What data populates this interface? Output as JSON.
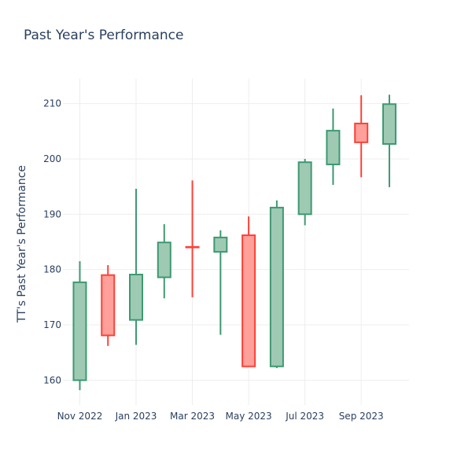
{
  "chart_data": {
    "type": "candlestick",
    "title": "Past Year's Performance",
    "ylabel": "TT's Past Year's Performance",
    "xlabel": "",
    "ylim": [
      155.5,
      214.5
    ],
    "xlim_months": [
      -0.6,
      11.7
    ],
    "yticks": [
      160,
      170,
      180,
      190,
      200,
      210
    ],
    "xticks": [
      {
        "m": 0,
        "label": "Nov 2022"
      },
      {
        "m": 2,
        "label": "Jan 2023"
      },
      {
        "m": 4,
        "label": "Mar 2023"
      },
      {
        "m": 6,
        "label": "May 2023"
      },
      {
        "m": 8,
        "label": "Jul 2023"
      },
      {
        "m": 10,
        "label": "Sep 2023"
      }
    ],
    "colors": {
      "increasing_line": "#3d9970",
      "increasing_fill": "#9ecab4",
      "decreasing_line": "#ff4136",
      "decreasing_fill": "#ffa09a"
    },
    "candles": [
      {
        "m": 0,
        "open": 160.0,
        "high": 181.5,
        "low": 158.2,
        "close": 177.7
      },
      {
        "m": 1,
        "open": 179.0,
        "high": 180.8,
        "low": 166.2,
        "close": 168.1
      },
      {
        "m": 2,
        "open": 170.9,
        "high": 194.6,
        "low": 166.4,
        "close": 179.1
      },
      {
        "m": 3,
        "open": 178.6,
        "high": 188.2,
        "low": 174.8,
        "close": 184.9
      },
      {
        "m": 4,
        "open": 184.1,
        "high": 196.1,
        "low": 175.0,
        "close": 184.0
      },
      {
        "m": 5,
        "open": 183.2,
        "high": 187.1,
        "low": 168.2,
        "close": 185.8
      },
      {
        "m": 6,
        "open": 186.2,
        "high": 189.6,
        "low": 162.5,
        "close": 162.5
      },
      {
        "m": 7,
        "open": 162.5,
        "high": 192.5,
        "low": 162.2,
        "close": 191.2
      },
      {
        "m": 8,
        "open": 190.0,
        "high": 200.0,
        "low": 188.0,
        "close": 199.4
      },
      {
        "m": 9,
        "open": 199.0,
        "high": 209.1,
        "low": 195.3,
        "close": 205.1
      },
      {
        "m": 10,
        "open": 206.4,
        "high": 211.5,
        "low": 196.7,
        "close": 203.0
      },
      {
        "m": 11,
        "open": 202.7,
        "high": 211.6,
        "low": 194.9,
        "close": 209.9
      }
    ]
  }
}
